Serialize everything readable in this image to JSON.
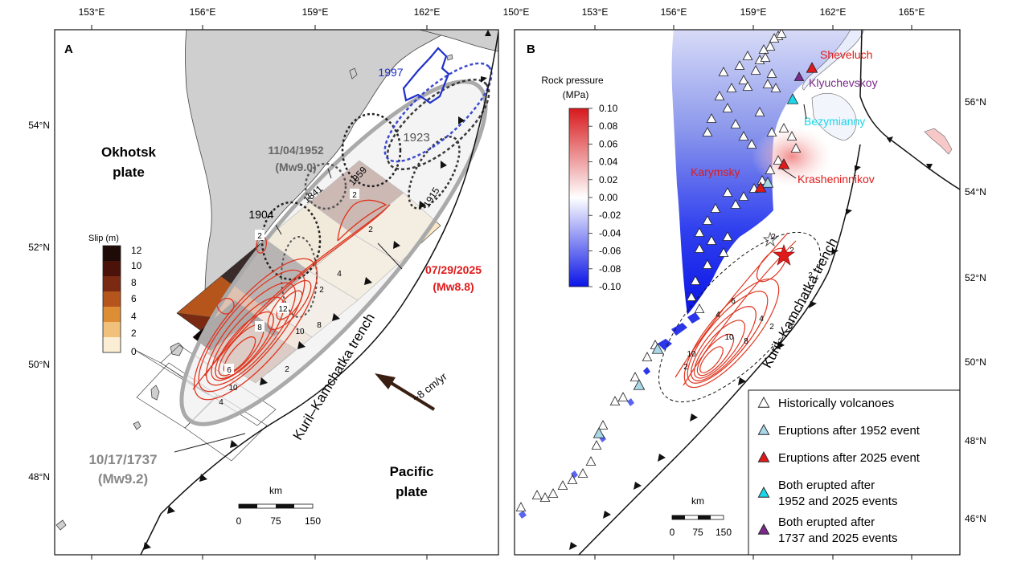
{
  "panel_a": {
    "letter": "A",
    "lon_ticks": [
      "153°E",
      "156°E",
      "159°E",
      "162°E"
    ],
    "lat_ticks": [
      "54°N",
      "52°N",
      "50°N",
      "48°N"
    ],
    "plate_okhotsk": [
      "Okhotsk",
      "plate"
    ],
    "plate_pacific": [
      "Pacific",
      "plate"
    ],
    "trench": "Kuril–Kamchatka trench",
    "velocity": "~8 cm/yr",
    "eq_1952": [
      "11/04/1952",
      "(Mw9.0)"
    ],
    "eq_2025": [
      "07/29/2025",
      "(Mw8.8)"
    ],
    "eq_1737": [
      "10/17/1737",
      "(Mw9.2)"
    ],
    "years": {
      "y1997": "1997",
      "y1923": "1923",
      "y1959": "1959",
      "y1841": "1841",
      "y1904": "1904",
      "y1915": "1915"
    },
    "slip_title": "Slip (m)",
    "slip_ticks": [
      "12",
      "10",
      "8",
      "6",
      "4",
      "2",
      "0"
    ],
    "slip_colors": [
      "#1e0a06",
      "#4a1208",
      "#7a2a12",
      "#b5551c",
      "#dd8e35",
      "#f1c07a",
      "#fbeed5"
    ],
    "contour_labels": [
      "2",
      "2",
      "2",
      "2",
      "4",
      "4",
      "8",
      "8",
      "10",
      "10",
      "12",
      "6",
      "2"
    ],
    "scale_title": "km",
    "scale_ticks": [
      "0",
      "75",
      "150"
    ]
  },
  "panel_b": {
    "letter": "B",
    "lon_ticks": [
      "150°E",
      "153°E",
      "156°E",
      "159°E",
      "162°E",
      "165°E"
    ],
    "lat_ticks": [
      "56°N",
      "54°N",
      "52°N",
      "50°N",
      "48°N",
      "46°N"
    ],
    "cb_title": [
      "Rock pressure",
      "(MPa)"
    ],
    "cb_ticks": [
      "0.10",
      "0.08",
      "0.06",
      "0.04",
      "0.02",
      "0.00",
      "-0.02",
      "-0.04",
      "-0.06",
      "-0.08",
      "-0.10"
    ],
    "cb_colors": [
      "#d7191c",
      "#ffffff",
      "#0a14e6"
    ],
    "volcano_names": {
      "sheveluch": "Sheveluch",
      "klyuchevskoy": "Klyuchevskoy",
      "bezymianny": "Bezymianny",
      "karymsky": "Karymsky",
      "krasheninnikov": "Krasheninnikov"
    },
    "volcano_colors": {
      "historic": "#ffffff",
      "after1952": "#a8d8e8",
      "after2025": "#e01a1a",
      "both1952": "#19d6e8",
      "both1737": "#7a2a8a"
    },
    "trench": "Kuril–Kamchatka trench",
    "contour_labels": [
      "2",
      "4",
      "6",
      "8",
      "10",
      "10",
      "2",
      "4",
      "2",
      "2",
      "2"
    ],
    "legend": [
      {
        "key": "historic",
        "text": [
          "Historically volcanoes"
        ]
      },
      {
        "key": "after1952",
        "text": [
          "Eruptions after 1952 event"
        ]
      },
      {
        "key": "after2025",
        "text": [
          "Eruptions after 2025 event"
        ]
      },
      {
        "key": "both1952",
        "text": [
          "Both erupted after",
          "1952 and 2025 events"
        ]
      },
      {
        "key": "both1737",
        "text": [
          "Both erupted after",
          "1737 and 2025 events"
        ]
      }
    ],
    "scale_title": "km",
    "scale_ticks": [
      "0",
      "75",
      "150"
    ]
  }
}
